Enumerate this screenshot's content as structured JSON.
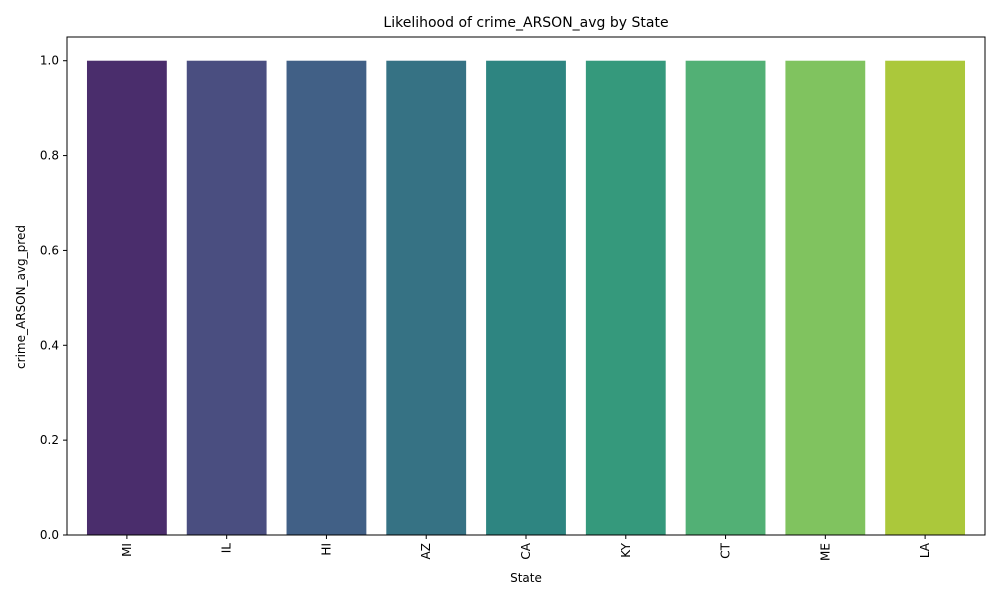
{
  "chart_data": {
    "type": "bar",
    "title": "Likelihood of crime_ARSON_avg by State",
    "xlabel": "State",
    "ylabel": "crime_ARSON_avg_pred",
    "categories": [
      "MI",
      "IL",
      "HI",
      "AZ",
      "CA",
      "KY",
      "CT",
      "ME",
      "LA"
    ],
    "values": [
      1.0,
      1.0,
      1.0,
      1.0,
      1.0,
      1.0,
      1.0,
      1.0,
      1.0
    ],
    "colors": [
      "#4a2d6c",
      "#4a4e80",
      "#416086",
      "#367284",
      "#2e8581",
      "#35997c",
      "#52b075",
      "#80c35f",
      "#abc83b"
    ],
    "ylim": [
      0,
      1.05
    ],
    "yticks": [
      0.0,
      0.2,
      0.4,
      0.6,
      0.8,
      1.0
    ],
    "ytick_labels": [
      "0.0",
      "0.2",
      "0.4",
      "0.6",
      "0.8",
      "1.0"
    ],
    "xtick_rotation": 90,
    "grid": false,
    "legend": "none"
  }
}
